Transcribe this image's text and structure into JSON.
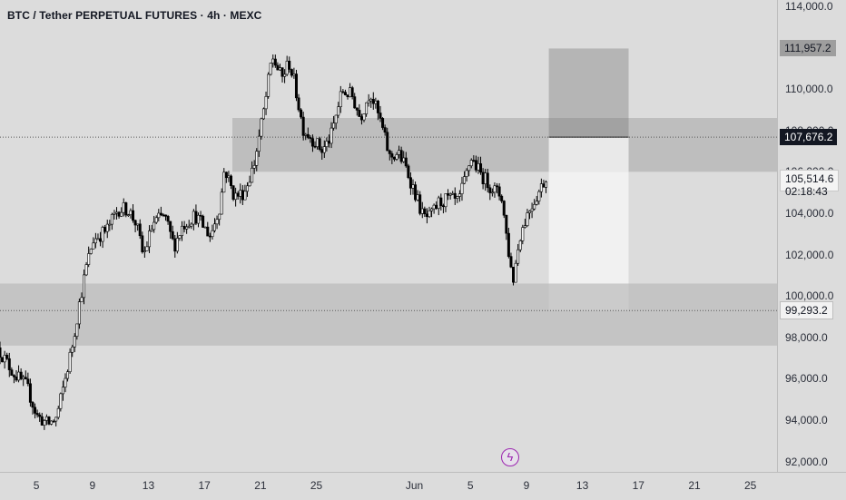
{
  "header": {
    "title": "BTC / Tether PERPETUAL FUTURES · 4h · MEXC"
  },
  "price_axis": {
    "ticks": [
      "114,000.0",
      "110,000.0",
      "108,000.0",
      "106,000.0",
      "104,000.0",
      "102,000.0",
      "100,000.0",
      "98,000.0",
      "96,000.0",
      "94,000.0",
      "92,000.0"
    ],
    "tick_values": [
      114000,
      110000,
      108000,
      106000,
      104000,
      102000,
      100000,
      98000,
      96000,
      94000,
      92000
    ],
    "labels": {
      "high": {
        "text": "111,957.2",
        "value": 111957.2
      },
      "mid": {
        "text": "107,676.2",
        "value": 107676.2
      },
      "current": {
        "text": "105,514.6",
        "value": 105514.6,
        "countdown": "02:18:43"
      },
      "low": {
        "text": "99,293.2",
        "value": 99293.2
      }
    }
  },
  "time_axis": {
    "ticks": [
      "5",
      "9",
      "13",
      "17",
      "21",
      "25",
      "Jun",
      "5",
      "9",
      "13",
      "17",
      "21",
      "25"
    ],
    "tick_days": [
      5,
      9,
      13,
      17,
      21,
      25,
      32,
      36,
      40,
      44,
      48,
      52,
      56
    ]
  },
  "chart_data": {
    "type": "candlestick",
    "title": "BTC / Tether PERPETUAL FUTURES · 4h · MEXC",
    "x_unit": "days since May 1",
    "ylim": [
      91500,
      114300
    ],
    "xlim": [
      2.4,
      57.9
    ],
    "key_path": [
      [
        2.4,
        97500
      ],
      [
        3.5,
        96300
      ],
      [
        4.5,
        95600
      ],
      [
        5.2,
        94200
      ],
      [
        6.0,
        93800
      ],
      [
        6.6,
        94100
      ],
      [
        7.2,
        95900
      ],
      [
        7.7,
        97500
      ],
      [
        8.2,
        99500
      ],
      [
        8.7,
        101300
      ],
      [
        9.2,
        102700
      ],
      [
        10.2,
        103200
      ],
      [
        11.0,
        104200
      ],
      [
        11.7,
        104200
      ],
      [
        12.3,
        103500
      ],
      [
        12.8,
        101900
      ],
      [
        13.5,
        103500
      ],
      [
        14.3,
        103900
      ],
      [
        15.0,
        102400
      ],
      [
        15.6,
        103400
      ],
      [
        16.5,
        103900
      ],
      [
        17.6,
        102900
      ],
      [
        18.3,
        104400
      ],
      [
        18.6,
        106200
      ],
      [
        19.3,
        104800
      ],
      [
        20.0,
        105000
      ],
      [
        20.7,
        106300
      ],
      [
        21.5,
        109300
      ],
      [
        22.0,
        111600
      ],
      [
        22.7,
        110500
      ],
      [
        23.2,
        111300
      ],
      [
        23.6,
        110300
      ],
      [
        24.2,
        108100
      ],
      [
        25.0,
        107500
      ],
      [
        25.6,
        107000
      ],
      [
        26.2,
        107700
      ],
      [
        27.0,
        109900
      ],
      [
        27.7,
        109700
      ],
      [
        28.3,
        108600
      ],
      [
        29.0,
        109900
      ],
      [
        29.8,
        108300
      ],
      [
        30.4,
        106700
      ],
      [
        31.0,
        106900
      ],
      [
        31.5,
        106300
      ],
      [
        32.2,
        105000
      ],
      [
        32.8,
        103800
      ],
      [
        33.3,
        103800
      ],
      [
        33.9,
        104500
      ],
      [
        34.6,
        104700
      ],
      [
        35.3,
        104500
      ],
      [
        35.9,
        105900
      ],
      [
        36.2,
        106700
      ],
      [
        36.9,
        105900
      ],
      [
        37.6,
        105300
      ],
      [
        38.4,
        104800
      ],
      [
        38.8,
        102600
      ],
      [
        39.2,
        100700
      ],
      [
        39.7,
        102900
      ],
      [
        40.3,
        104100
      ],
      [
        40.8,
        104700
      ],
      [
        41.4,
        105500
      ]
    ],
    "zones": [
      {
        "from": 19.0,
        "to": 57.9,
        "bottom": 106000,
        "top": 108600,
        "color": "#bebebe"
      },
      {
        "from": 2.4,
        "to": 57.9,
        "bottom": 97600,
        "top": 100600,
        "color": "#c4c4c4"
      }
    ],
    "position_tool": {
      "from": 41.6,
      "to": 47.3,
      "target": 111957.2,
      "entry": 107676.2,
      "stop": 99293.2,
      "zone_top": 106000,
      "zone_bottom": 100600,
      "colors": {
        "target": "#b5b5b5",
        "target_overlap": "#a2a2a2",
        "above_zone": "#e9e9e9",
        "in_zone": "#f1f1f1",
        "below_zone": "#cbcbcb"
      }
    },
    "price_lines": [
      107676.2,
      99293.2
    ],
    "current_price": 105514.6,
    "colors": {
      "background": "#dcdcdc",
      "candle": "#000000",
      "up_body": "#f8f8f8",
      "down_body": "#000000",
      "dotted": "#5a5a5a",
      "accent": "#9c27b0"
    }
  },
  "alert_button": {
    "glyph": "ϟ"
  }
}
